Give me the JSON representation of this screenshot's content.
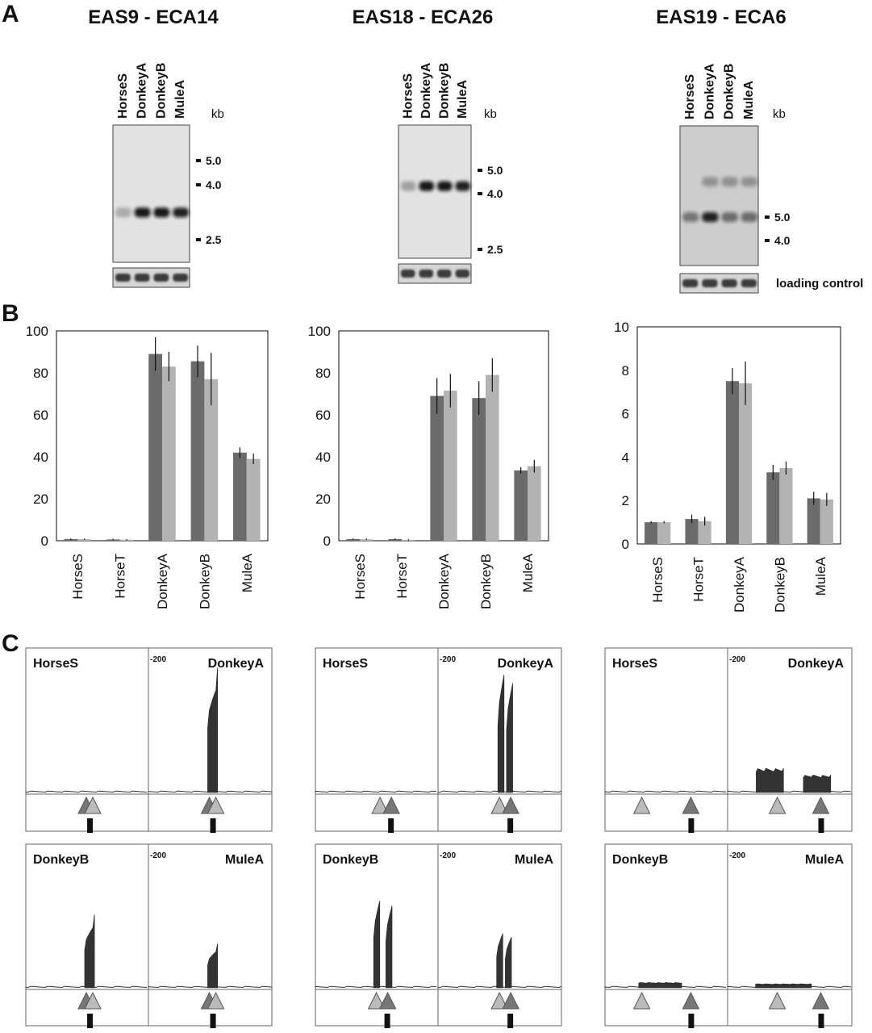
{
  "panel_letters": [
    "A",
    "B",
    "C"
  ],
  "blot_panels": [
    {
      "title": "EAS9 - ECA14",
      "lanes": [
        "HorseS",
        "DonkeyA",
        "DonkeyB",
        "MuleA"
      ],
      "unit": "kb",
      "markers": [
        {
          "label": "5.0",
          "kb": 5.0
        },
        {
          "label": "4.0",
          "kb": 4.0
        },
        {
          "label": "2.5",
          "kb": 2.5
        }
      ],
      "bands": [
        {
          "kb": 3.1,
          "intensity": [
            0.25,
            0.95,
            0.95,
            0.9
          ]
        }
      ],
      "loading_control_label": ""
    },
    {
      "title": "EAS18 - ECA26",
      "lanes": [
        "HorseS",
        "DonkeyA",
        "DonkeyB",
        "MuleA"
      ],
      "unit": "kb",
      "markers": [
        {
          "label": "5.0",
          "kb": 5.0
        },
        {
          "label": "4.0",
          "kb": 4.0
        },
        {
          "label": "2.5",
          "kb": 2.5
        }
      ],
      "bands": [
        {
          "kb": 4.3,
          "intensity": [
            0.3,
            0.95,
            0.95,
            0.9
          ]
        }
      ],
      "loading_control_label": ""
    },
    {
      "title": "EAS19 - ECA6",
      "lanes": [
        "HorseS",
        "DonkeyA",
        "DonkeyB",
        "MuleA"
      ],
      "unit": "kb",
      "markers": [
        {
          "label": "5.0",
          "kb": 5.0
        },
        {
          "label": "4.0",
          "kb": 4.0
        }
      ],
      "bands": [
        {
          "kb": 5.0,
          "intensity": [
            0.45,
            0.9,
            0.5,
            0.5
          ]
        },
        {
          "kb": 7.0,
          "intensity": [
            0.0,
            0.3,
            0.3,
            0.3
          ]
        }
      ],
      "loading_control_label": "loading control"
    }
  ],
  "chart_data": [
    {
      "type": "bar",
      "categories": [
        "HorseS",
        "HorseT",
        "DonkeyA",
        "DonkeyB",
        "MuleA"
      ],
      "series": [
        {
          "values": [
            0.8,
            0.6,
            89,
            85.5,
            42
          ],
          "errors": [
            0.3,
            0.3,
            8,
            7.5,
            2.5
          ],
          "color": "#6b6b6b"
        },
        {
          "values": [
            0.7,
            0.5,
            83,
            77,
            39
          ],
          "errors": [
            0.3,
            0.3,
            7,
            12.5,
            2.5
          ],
          "color": "#b3b3b3"
        }
      ],
      "ylim": [
        0,
        100
      ],
      "yticks": [
        0,
        20,
        40,
        60,
        80,
        100
      ],
      "title": "",
      "xlabel": "",
      "ylabel": "",
      "grid": false
    },
    {
      "type": "bar",
      "categories": [
        "HorseS",
        "HorseT",
        "DonkeyA",
        "DonkeyB",
        "MuleA"
      ],
      "series": [
        {
          "values": [
            0.8,
            0.8,
            69,
            68,
            33.5
          ],
          "errors": [
            0.3,
            0.3,
            8.5,
            8,
            1.5
          ],
          "color": "#6b6b6b"
        },
        {
          "values": [
            0.7,
            0.4,
            71.5,
            79,
            35.5
          ],
          "errors": [
            0.3,
            0.3,
            8,
            8,
            3
          ],
          "color": "#b3b3b3"
        }
      ],
      "ylim": [
        0,
        100
      ],
      "yticks": [
        0,
        20,
        40,
        60,
        80,
        100
      ],
      "title": "",
      "xlabel": "",
      "ylabel": "",
      "grid": false
    },
    {
      "type": "bar",
      "categories": [
        "HorseS",
        "HorseT",
        "DonkeyA",
        "DonkeyB",
        "MuleA"
      ],
      "series": [
        {
          "values": [
            1.0,
            1.15,
            7.5,
            3.3,
            2.1
          ],
          "errors": [
            0.05,
            0.2,
            0.6,
            0.35,
            0.3
          ],
          "color": "#6b6b6b"
        },
        {
          "values": [
            1.0,
            1.05,
            7.4,
            3.5,
            2.05
          ],
          "errors": [
            0.05,
            0.2,
            1.0,
            0.3,
            0.3
          ],
          "color": "#b3b3b3"
        }
      ],
      "ylim": [
        0,
        10
      ],
      "yticks": [
        0,
        2,
        4,
        6,
        8,
        10
      ],
      "title": "",
      "xlabel": "",
      "ylabel": "",
      "grid": false
    }
  ],
  "track_panels": [
    {
      "rows": [
        {
          "left": {
            "label": "HorseS",
            "peaks": [],
            "arrows": [
              {
                "x": 0.52,
                "order": "dark-first"
              }
            ]
          },
          "right": {
            "label": "DonkeyA",
            "scale": "-200",
            "peaks": [
              {
                "x": 0.52,
                "height": 0.93,
                "width": 0.08
              }
            ],
            "arrows": [
              {
                "x": 0.52,
                "order": "dark-first"
              }
            ]
          }
        },
        {
          "left": {
            "label": "DonkeyB",
            "peaks": [
              {
                "x": 0.52,
                "height": 0.55,
                "width": 0.08
              }
            ],
            "arrows": [
              {
                "x": 0.52,
                "order": "dark-first"
              }
            ]
          },
          "right": {
            "label": "MuleA",
            "scale": "-200",
            "peaks": [
              {
                "x": 0.52,
                "height": 0.33,
                "width": 0.08
              }
            ],
            "arrows": [
              {
                "x": 0.52,
                "order": "dark-first"
              }
            ]
          }
        }
      ]
    },
    {
      "rows": [
        {
          "left": {
            "label": "HorseS",
            "peaks": [],
            "arrows": [
              {
                "x": 0.58,
                "order": "light-first"
              }
            ]
          },
          "right": {
            "label": "DonkeyA",
            "scale": "-200",
            "peaks": [
              {
                "x": 0.51,
                "height": 0.97,
                "width": 0.05
              },
              {
                "x": 0.58,
                "height": 0.9,
                "width": 0.05
              }
            ],
            "arrows": [
              {
                "x": 0.55,
                "order": "light-first"
              }
            ]
          }
        },
        {
          "left": {
            "label": "DonkeyB",
            "peaks": [
              {
                "x": 0.5,
                "height": 0.72,
                "width": 0.05
              },
              {
                "x": 0.6,
                "height": 0.68,
                "width": 0.05
              }
            ],
            "arrows": [
              {
                "x": 0.55,
                "order": "light-first"
              }
            ]
          },
          "right": {
            "label": "MuleA",
            "scale": "-200",
            "peaks": [
              {
                "x": 0.5,
                "height": 0.45,
                "width": 0.05
              },
              {
                "x": 0.57,
                "height": 0.42,
                "width": 0.05
              }
            ],
            "arrows": [
              {
                "x": 0.55,
                "order": "light-first"
              }
            ]
          }
        }
      ]
    },
    {
      "rows": [
        {
          "left": {
            "label": "HorseS",
            "peaks": [],
            "arrows": [
              {
                "x": 0.3,
                "order": "light"
              },
              {
                "x": 0.7,
                "order": "dark"
              }
            ]
          },
          "right": {
            "label": "DonkeyA",
            "scale": "-200",
            "peaks": [
              {
                "x": 0.34,
                "height": 0.18,
                "width": 0.22
              },
              {
                "x": 0.72,
                "height": 0.13,
                "width": 0.22
              }
            ],
            "arrows": [
              {
                "x": 0.4,
                "order": "light"
              },
              {
                "x": 0.75,
                "order": "dark"
              }
            ]
          }
        },
        {
          "left": {
            "label": "DonkeyB",
            "peaks": [
              {
                "x": 0.45,
                "height": 0.04,
                "width": 0.35
              }
            ],
            "arrows": [
              {
                "x": 0.3,
                "order": "light"
              },
              {
                "x": 0.7,
                "order": "dark"
              }
            ]
          },
          "right": {
            "label": "MuleA",
            "scale": "-200",
            "peaks": [
              {
                "x": 0.45,
                "height": 0.03,
                "width": 0.45
              }
            ],
            "arrows": [
              {
                "x": 0.4,
                "order": "light"
              },
              {
                "x": 0.75,
                "order": "dark"
              }
            ]
          }
        }
      ]
    }
  ]
}
